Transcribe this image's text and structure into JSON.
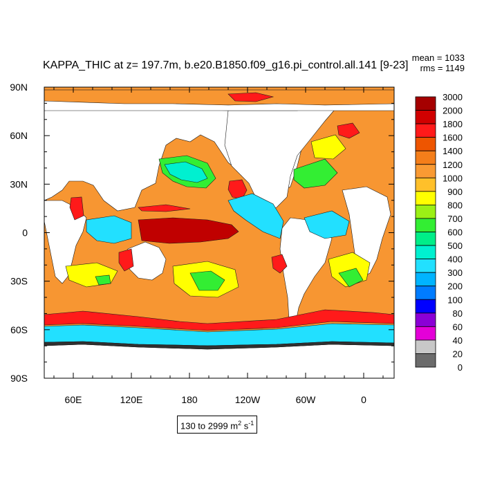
{
  "title": "KAPPA_THIC at z= 197.7m, b.e20.B1850.f09_g16.pi_control.all.141 [9-23]",
  "stats": {
    "mean": "mean = 1033",
    "rms": "rms = 1149"
  },
  "range_label": {
    "text": "130 to 2999 m",
    "sup1": "2",
    "mid": " s",
    "sup2": "-1"
  },
  "y_axis": {
    "labels": [
      "90N",
      "60N",
      "30N",
      "0",
      "30S",
      "60S",
      "90S"
    ]
  },
  "x_axis": {
    "labels": [
      "60E",
      "120E",
      "180",
      "120W",
      "60W",
      "0"
    ]
  },
  "colorbar": {
    "labels": [
      "3000",
      "2000",
      "1800",
      "1600",
      "1400",
      "1200",
      "1000",
      "900",
      "800",
      "700",
      "600",
      "500",
      "400",
      "300",
      "200",
      "100",
      "80",
      "60",
      "40",
      "20",
      "0"
    ],
    "colors": [
      "#a50000",
      "#d10000",
      "#ff1a1a",
      "#ee5500",
      "#f47e1a",
      "#f99a33",
      "#ffc02a",
      "#ffff00",
      "#9bf015",
      "#33ee33",
      "#00ee88",
      "#00f0d0",
      "#22e0ff",
      "#00b4ff",
      "#007cff",
      "#0000ff",
      "#8b00d6",
      "#e400d8",
      "#c8c8c8",
      "#6b6b6b"
    ]
  },
  "map_colors": {
    "land": "#ffffff",
    "base": "#f79632",
    "mid": "#ffc02a",
    "tropics_red": "#c00000",
    "red": "#ff1a1a",
    "cyan": "#22e0ff",
    "green": "#33ee33",
    "teal": "#00f0d0",
    "blue": "#00b4ff",
    "yellow": "#ffff00",
    "dark": "#303030"
  }
}
